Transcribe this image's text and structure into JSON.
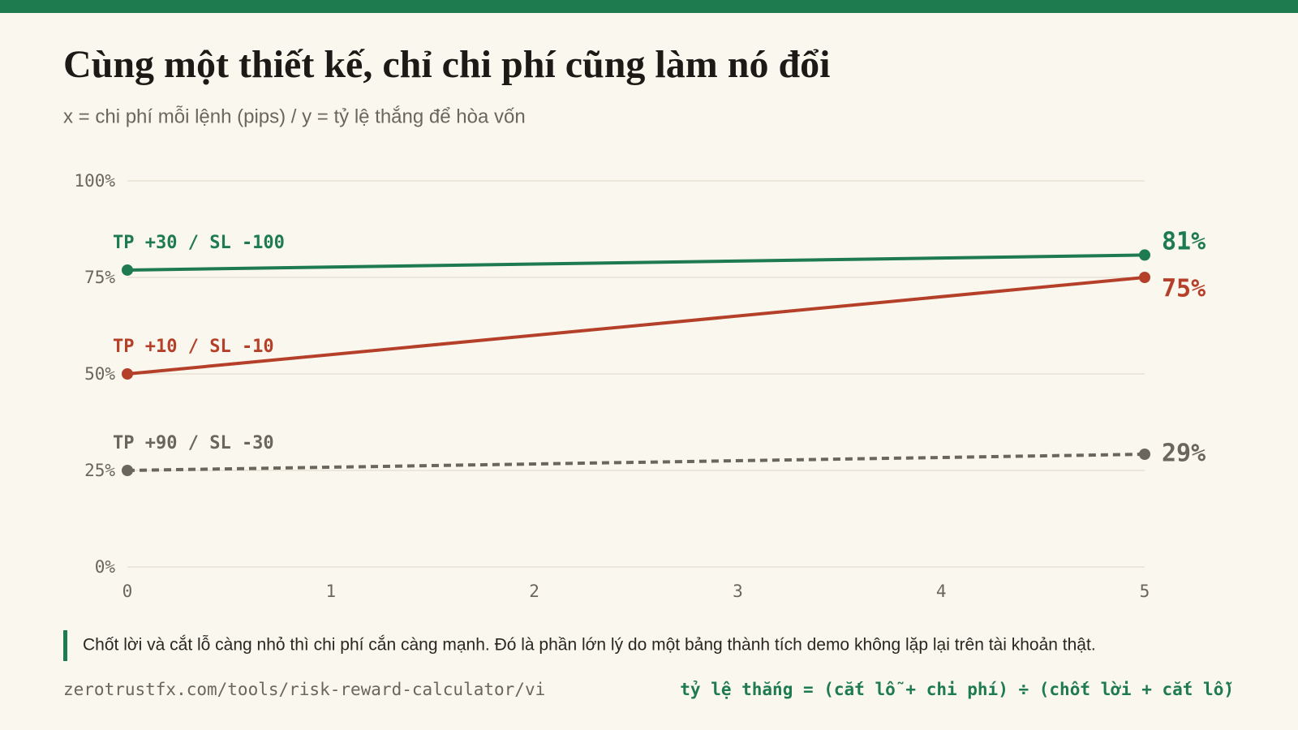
{
  "chart_data": {
    "type": "line",
    "title": "Cùng một thiết kế, chỉ chi phí cũng làm nó đổi",
    "subtitle": "x = chi phí mỗi lệnh (pips) / y = tỷ lệ thắng để hòa vốn",
    "x": [
      0,
      5
    ],
    "xlim": [
      0,
      5
    ],
    "xticks": [
      0,
      1,
      2,
      3,
      4,
      5
    ],
    "ylim": [
      0,
      100
    ],
    "yticks": [
      {
        "value": 0,
        "label": "0%"
      },
      {
        "value": 25,
        "label": "25%"
      },
      {
        "value": 50,
        "label": "50%"
      },
      {
        "value": 75,
        "label": "75%"
      },
      {
        "value": 100,
        "label": "100%"
      }
    ],
    "grid": true,
    "series": [
      {
        "name": "TP +30 / SL -100",
        "color": "#1e7a4f",
        "dashed": false,
        "values": [
          76.9,
          80.8
        ],
        "value_labels": [
          null,
          "81%"
        ]
      },
      {
        "name": "TP +10 / SL -10",
        "color": "#b5402a",
        "dashed": false,
        "values": [
          50,
          75
        ],
        "value_labels": [
          null,
          "75%"
        ]
      },
      {
        "name": "TP +90 / SL -30",
        "color": "#6b665c",
        "dashed": true,
        "values": [
          25,
          29.2
        ],
        "value_labels": [
          null,
          "29%"
        ]
      }
    ],
    "note": "Chốt lời và cắt lỗ càng nhỏ thì chi phí cắn càng mạnh. Đó là phần lớn lý do một bảng thành tích demo không lặp lại trên tài khoản thật.",
    "source": "zerotrustfx.com/tools/risk-reward-calculator/vi",
    "formula": "tỷ lệ thắng = (cắt lỗ + chi phí) ÷ (chốt lời + cắt lỗ)"
  }
}
